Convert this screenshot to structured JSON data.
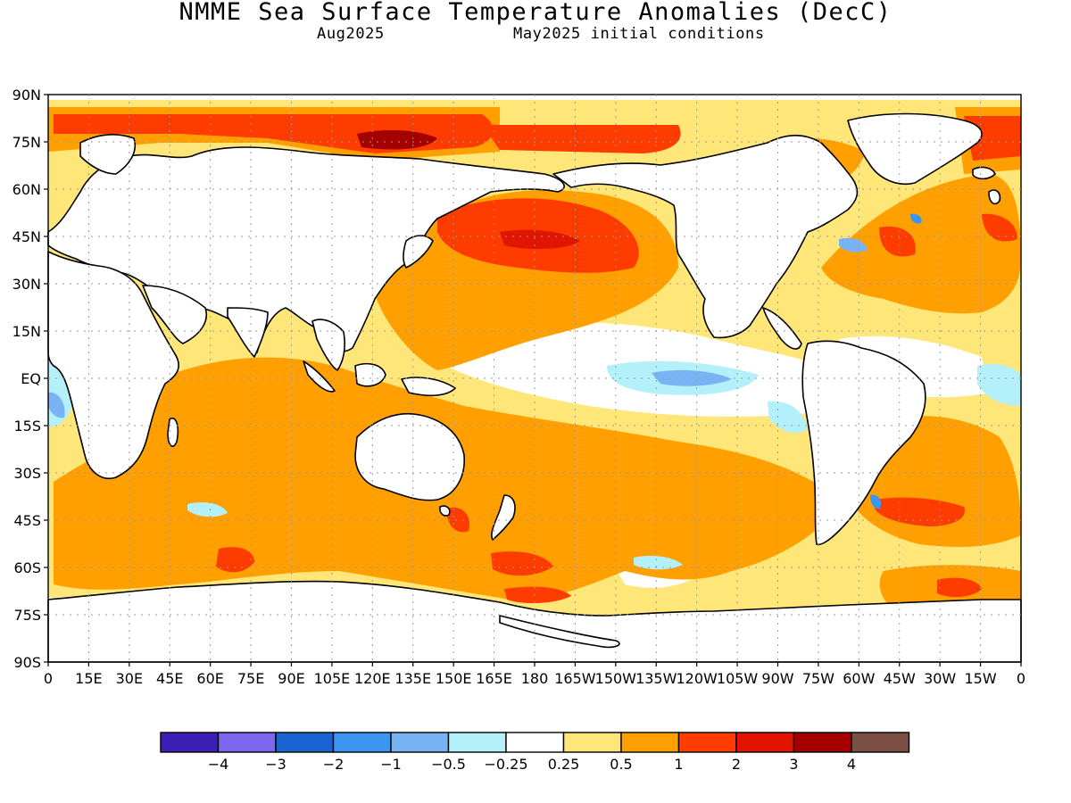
{
  "title": "NMME Sea Surface Temperature Anomalies (DecC)",
  "subtitle_left": "Aug2025",
  "subtitle_right": "May2025 initial conditions",
  "lat_labels": [
    "90N",
    "75N",
    "60N",
    "45N",
    "30N",
    "15N",
    "EQ",
    "15S",
    "30S",
    "45S",
    "60S",
    "75S",
    "90S"
  ],
  "lon_labels": [
    "0",
    "15E",
    "30E",
    "45E",
    "60E",
    "75E",
    "90E",
    "105E",
    "120E",
    "135E",
    "150E",
    "165E",
    "180",
    "165W",
    "150W",
    "135W",
    "120W",
    "105W",
    "90W",
    "75W",
    "60W",
    "45W",
    "30W",
    "15W",
    "0"
  ],
  "colorbar": {
    "colors": [
      "#3c1fb4",
      "#7b68ee",
      "#1a64d2",
      "#3c96f0",
      "#78b4f5",
      "#b4f0fa",
      "#ffffff",
      "#ffe678",
      "#ffa000",
      "#ff3c00",
      "#e11400",
      "#a50000",
      "#7a5044"
    ],
    "labels": [
      "-4",
      "-3",
      "-2",
      "-1",
      "-0.5",
      "-0.25",
      "0.25",
      "0.5",
      "1",
      "2",
      "3",
      "4"
    ]
  },
  "palette": {
    "light_yellow": "#ffe678",
    "orange": "#ffa000",
    "red_orange": "#ff3c00",
    "red": "#e11400",
    "dark_red": "#a50000",
    "light_cyan": "#b4f0fa",
    "light_blue": "#78b4f5",
    "mid_blue": "#3c96f0",
    "land": "#ffffff"
  }
}
